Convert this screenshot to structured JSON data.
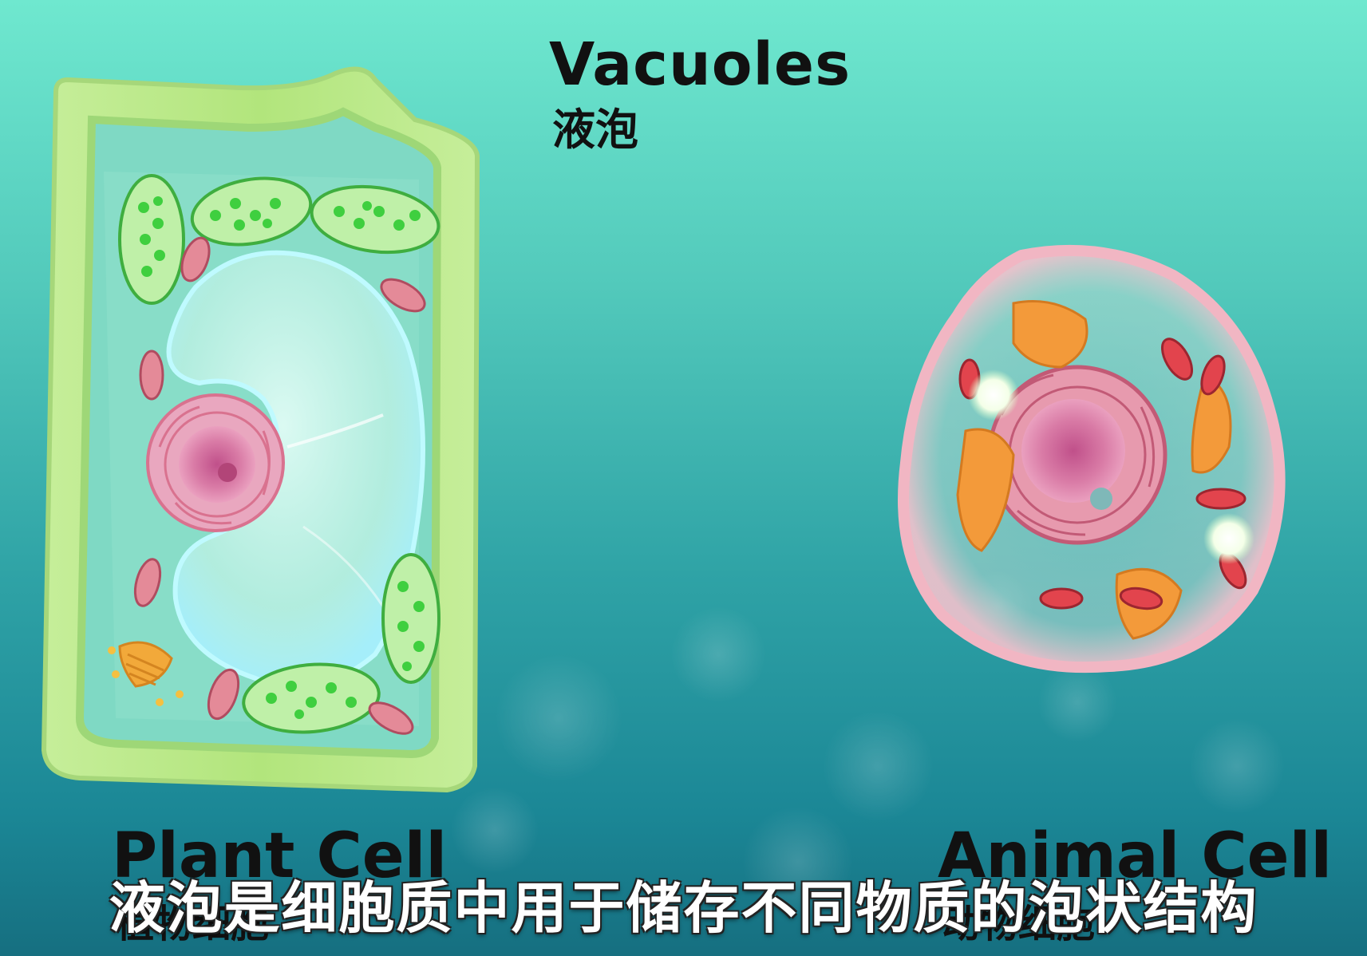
{
  "title": {
    "english": "Vacuoles",
    "chinese": "液泡"
  },
  "plant_cell": {
    "label_english": "Plant Cell",
    "label_chinese": "植物细胞"
  },
  "animal_cell": {
    "label_english": "Animal Cell",
    "label_chinese": "动物细胞"
  },
  "subtitle": "液泡是细胞质中用于储存不同物质的泡状结构",
  "colors": {
    "background_top": "#6fe8cf",
    "background_bottom": "#166f80",
    "plant_wall": "#b9e98a",
    "chloroplast": "#3fcf3f",
    "mitochondria": "#d9677a",
    "golgi": "#f0a030",
    "nucleus": "#d9709a",
    "animal_membrane": "#f3b8c4"
  }
}
